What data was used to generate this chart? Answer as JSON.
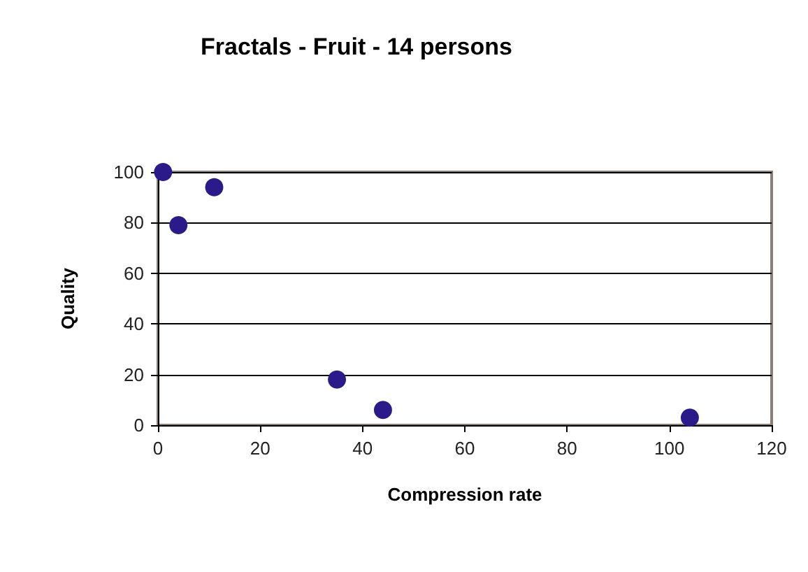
{
  "chart_data": {
    "type": "scatter",
    "title": "Fractals - Fruit - 14 persons",
    "xlabel": "Compression rate",
    "ylabel": "Quality",
    "x": [
      1,
      4,
      11,
      35,
      44,
      104
    ],
    "values": [
      100,
      79,
      94,
      18,
      6,
      3
    ],
    "color": "#2b1b8a",
    "marker": "circle",
    "xlim": [
      0,
      120
    ],
    "xticks": [
      0,
      20,
      40,
      60,
      80,
      100,
      120
    ],
    "ylim": [
      0,
      100
    ],
    "yticks": [
      0,
      20,
      40,
      60,
      80,
      100
    ],
    "grid": "y"
  }
}
